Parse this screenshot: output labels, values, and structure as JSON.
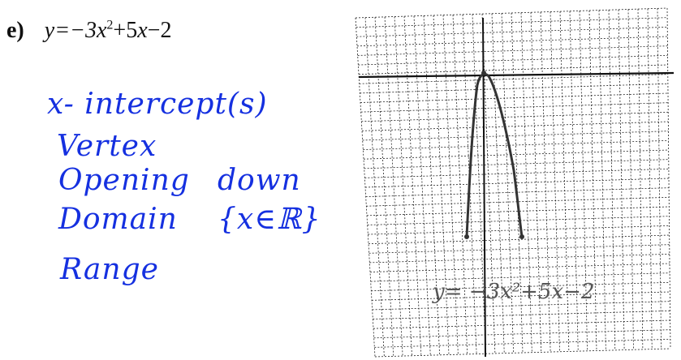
{
  "problem": {
    "label": "e)",
    "equation_prefix": "y=−3",
    "equation_var1": "x",
    "equation_exp": "2",
    "equation_mid": "+5",
    "equation_var2": "x",
    "equation_suffix": "−2"
  },
  "notes": {
    "x_intercepts": "x- intercept(s)",
    "vertex": "Vertex",
    "opening_label": "Opening",
    "opening_value": "down",
    "domain_label": "Domain",
    "domain_value": "{x∈ℝ}",
    "range_label": "Range"
  },
  "graph": {
    "equation_label": "y=  −3x²+5x−2"
  },
  "colors": {
    "ink_blue": "#1530e0",
    "grid_line": "#222222",
    "curve": "#333333"
  }
}
